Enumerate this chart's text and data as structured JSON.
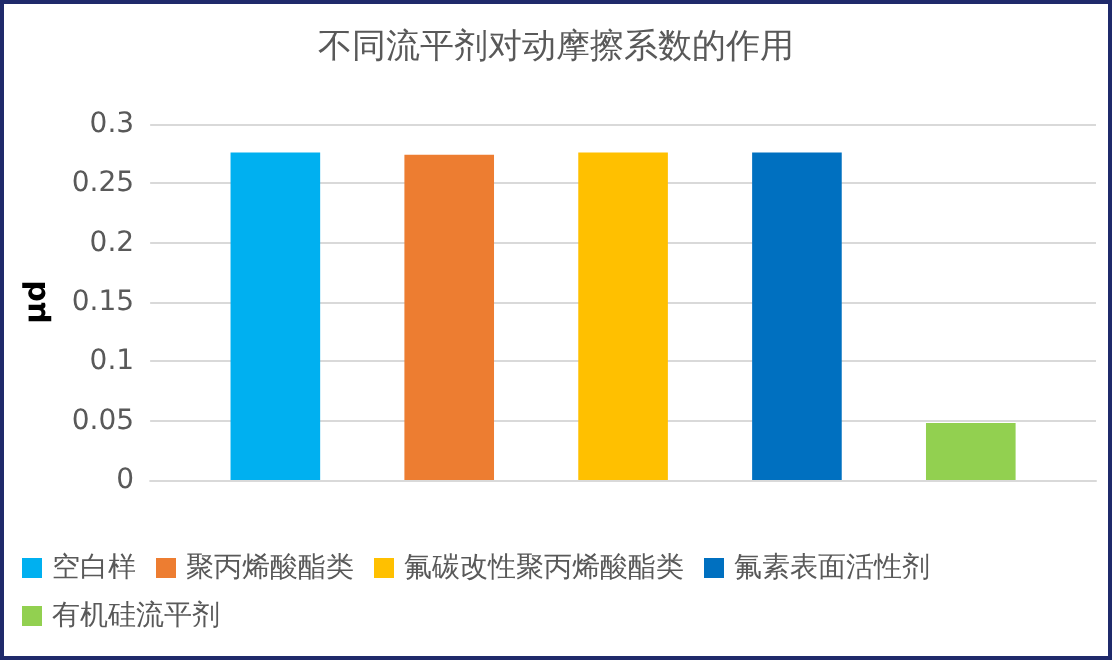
{
  "chart_data": {
    "type": "bar",
    "title": "不同流平剂对动摩擦系数的作用",
    "ylabel": "μd",
    "categories": [
      null
    ],
    "series": [
      {
        "name": "空白样",
        "color": "#00b0f0",
        "values": [
          0.276
        ]
      },
      {
        "name": "聚丙烯酸酯类",
        "color": "#ed7d31",
        "values": [
          0.274
        ]
      },
      {
        "name": "氟碳改性聚丙烯酸酯类",
        "color": "#ffc000",
        "values": [
          0.276
        ]
      },
      {
        "name": "氟素表面活性剂",
        "color": "#0070c0",
        "values": [
          0.276
        ]
      },
      {
        "name": "有机硅流平剂",
        "color": "#92d050",
        "values": [
          0.048
        ]
      }
    ],
    "ylim": [
      0,
      0.3
    ],
    "yticks": [
      0,
      0.05,
      0.1,
      0.15,
      0.2,
      0.25,
      0.3
    ],
    "grid": "y",
    "legend": "bottom"
  }
}
